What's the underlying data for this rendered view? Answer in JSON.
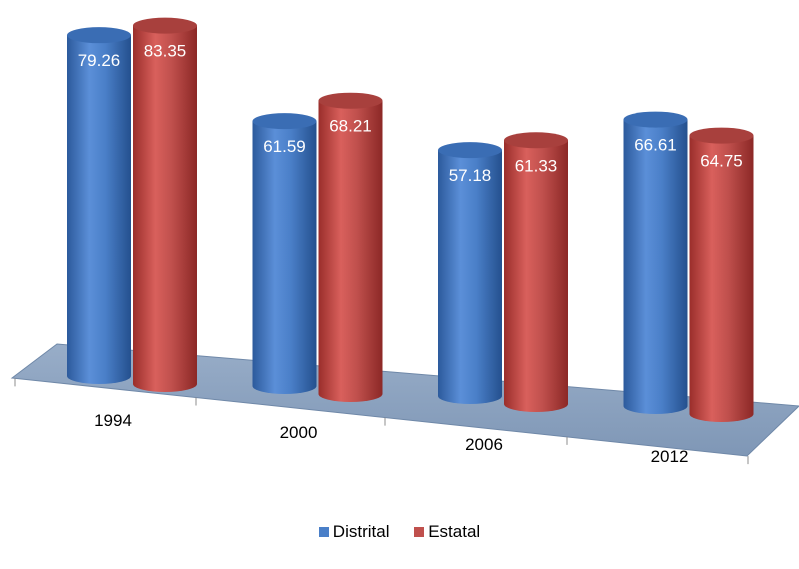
{
  "chart_data": {
    "type": "bar",
    "style": "3d-cylinder",
    "categories": [
      "1994",
      "2000",
      "2006",
      "2012"
    ],
    "series": [
      {
        "name": "Distrital",
        "color": "#4a7fc8",
        "values": [
          79.26,
          61.59,
          57.18,
          66.61
        ]
      },
      {
        "name": "Estatal",
        "color": "#c0504d",
        "values": [
          83.35,
          68.21,
          61.33,
          64.75
        ]
      }
    ],
    "data_labels": true,
    "legend_position": "bottom",
    "floor_color": "#8fa6c2"
  },
  "legend": [
    {
      "label": "Distrital",
      "color": "#4a7fc8"
    },
    {
      "label": "Estatal",
      "color": "#c0504d"
    }
  ]
}
